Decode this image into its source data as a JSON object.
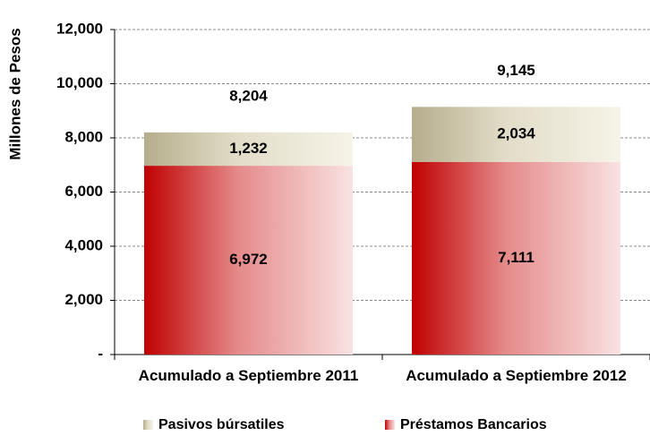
{
  "chart_data": {
    "type": "stacked_bar",
    "y_label": "Millones de Pesos",
    "categories": [
      "Acumulado a Septiembre 2011",
      "Acumulado a Septiembre 2012"
    ],
    "series": [
      {
        "name": "Préstamos Bancarios",
        "color": "#c00000",
        "values": [
          6972,
          7111
        ],
        "value_labels": [
          "6,972",
          "7,111"
        ]
      },
      {
        "name": "Pasivos búrsatiles",
        "color": "#b5ad8c",
        "values": [
          1232,
          2034
        ],
        "value_labels": [
          "1,232",
          "2,034"
        ]
      }
    ],
    "totals": [
      8204,
      9145
    ],
    "total_labels": [
      "8,204",
      "9,145"
    ],
    "ylim": [
      0,
      12000
    ],
    "yticks": [
      {
        "value": 0,
        "label": "-"
      },
      {
        "value": 2000,
        "label": "2,000"
      },
      {
        "value": 4000,
        "label": "4,000"
      },
      {
        "value": 6000,
        "label": "6,000"
      },
      {
        "value": 8000,
        "label": "8,000"
      },
      {
        "value": 10000,
        "label": "10,000"
      },
      {
        "value": 12000,
        "label": "12,000"
      }
    ],
    "grid": true,
    "legend": "bottom"
  }
}
